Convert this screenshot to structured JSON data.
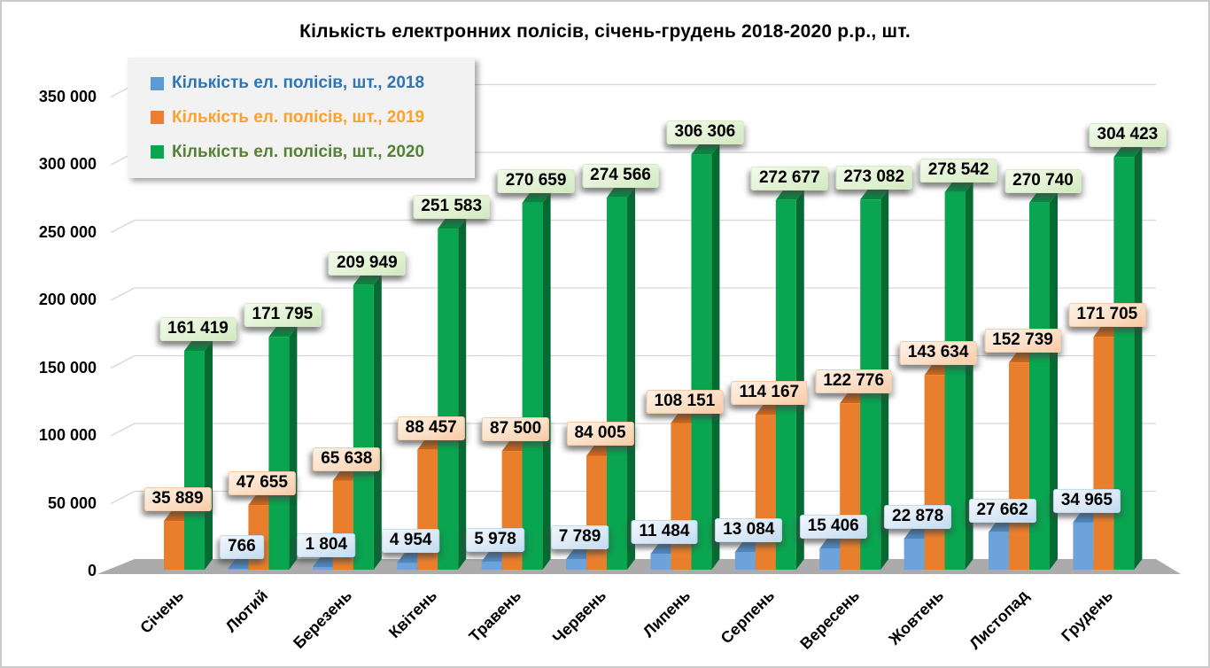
{
  "window": {
    "background": "#FFFFFF",
    "border_color": "#CACACA",
    "gridline_color": "#D6D6D6",
    "floor_color": "#ABABAB"
  },
  "chart_data": {
    "type": "bar",
    "projection": "3d-clustered-column",
    "title": "Кількість електронних полісів, січень-грудень 2018-2020 р.р., шт.",
    "xlabel": "",
    "ylabel": "",
    "categories": [
      "Січень",
      "Лютий",
      "Березень",
      "Квітень",
      "Травень",
      "Червень",
      "Липень",
      "Серпень",
      "Вересень",
      "Жовтень",
      "Листопад",
      "Грудень"
    ],
    "series": [
      {
        "name": "Кількість ел. полісів, шт., 2018",
        "year": "2018",
        "marker_color": "#5B9BD5",
        "text_color": "#2E75B6",
        "bar_front": "#6DA3DB",
        "bar_top": "#5089C2",
        "bar_side": "#3C6FA5",
        "plaque_class": "plaque-blue",
        "values": [
          null,
          766,
          1804,
          4954,
          5978,
          7789,
          11484,
          13084,
          15406,
          22878,
          27662,
          34965
        ]
      },
      {
        "name": "Кількість ел. полісів, шт., 2019",
        "year": "2019",
        "marker_color": "#ED7D31",
        "text_color": "#FBA12C",
        "bar_front": "#E97F2D",
        "bar_top": "#CB671C",
        "bar_side": "#A85513",
        "plaque_class": "plaque-orange",
        "values": [
          35889,
          47655,
          65638,
          88457,
          87500,
          84005,
          108151,
          114167,
          122776,
          143634,
          152739,
          171705
        ]
      },
      {
        "name": "Кількість ел. полісів, шт., 2020",
        "year": "2020",
        "marker_color": "#0AA551",
        "text_color": "#548235",
        "bar_front": "#0AA551",
        "bar_top": "#078B43",
        "bar_side": "#066B33",
        "plaque_class": "plaque-green",
        "values": [
          161419,
          171795,
          209949,
          251583,
          270659,
          274566,
          306306,
          272677,
          273082,
          278542,
          270740,
          304423
        ]
      }
    ],
    "ylim": [
      0,
      350000
    ],
    "ytick_step": 50000,
    "ytick_labels": [
      "0",
      "50 000",
      "100 000",
      "150 000",
      "200 000",
      "250 000",
      "300 000",
      "350 000"
    ],
    "grid": true,
    "legend_position": "top-left",
    "data_labels": "all-points, thousands separated by space"
  }
}
